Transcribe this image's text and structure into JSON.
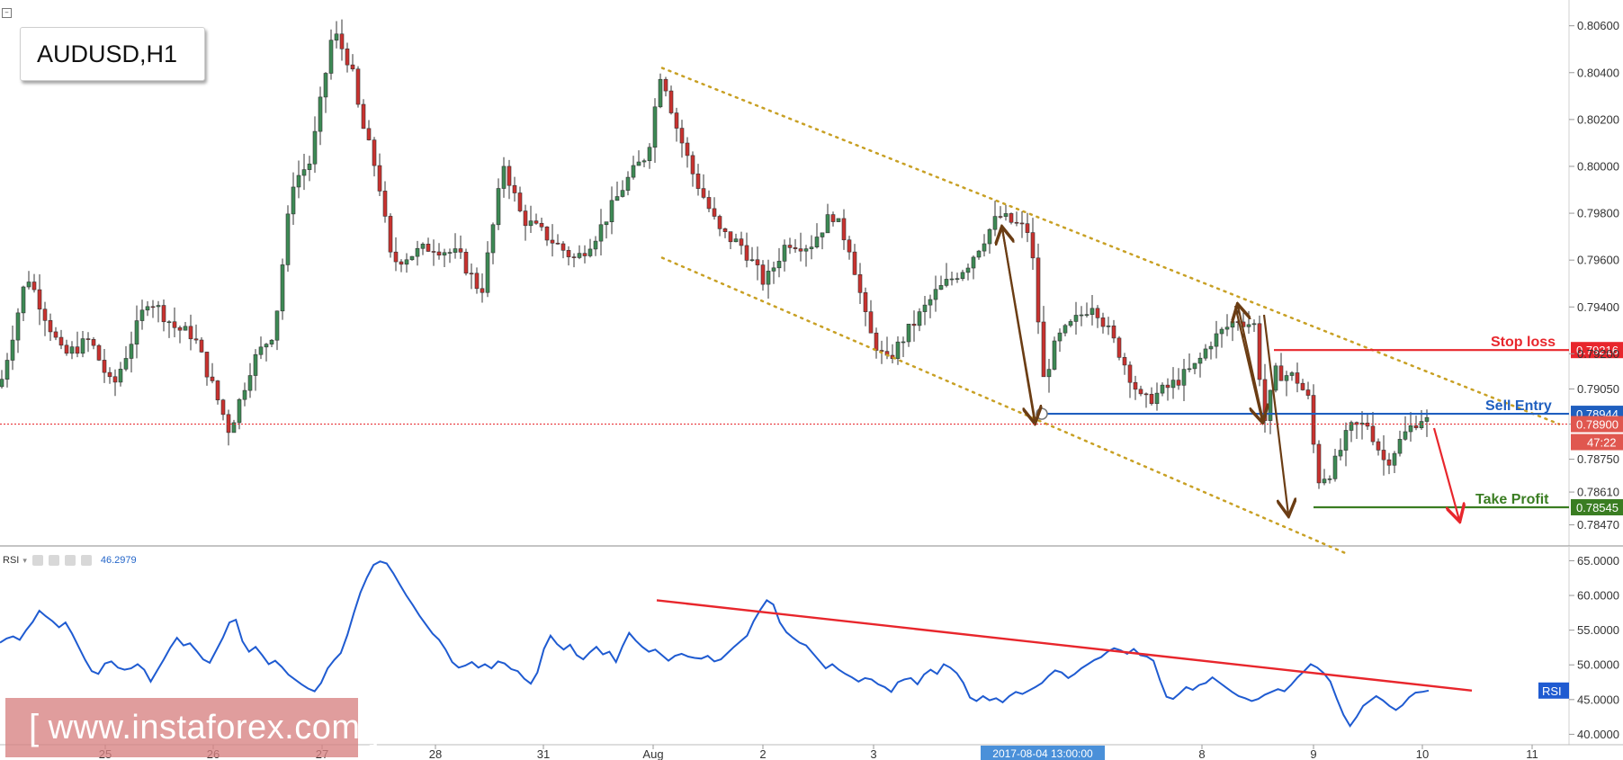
{
  "symbol_label": "AUDUSD,H1",
  "chart_data": [
    {
      "type": "candlestick",
      "title": "AUDUSD,H1",
      "ylim": [
        0.7838,
        0.8071
      ],
      "y_ticks": [
        "0.80600",
        "0.80400",
        "0.80200",
        "0.80000",
        "0.79800",
        "0.79600",
        "0.79400",
        "0.79200",
        "0.79050",
        "0.78900",
        "0.78750",
        "0.78610",
        "0.78470"
      ],
      "x_tick_labels": [
        "25",
        "26",
        "27",
        "28",
        "31",
        "Aug",
        "2",
        "3",
        "8",
        "9",
        "10",
        "11"
      ],
      "highlighted_time": "2017-08-04 13:00:00",
      "current_price": "0.78900",
      "countdown": "47:22",
      "levels": [
        {
          "name": "Stop loss",
          "value": "0.79216",
          "color": "#e8262c"
        },
        {
          "name": "Sell Entry",
          "value": "0.78944",
          "color": "#1f5fbf"
        },
        {
          "name": "Take Profit",
          "value": "0.78545",
          "color": "#3a7d22"
        }
      ],
      "channel": {
        "upper": [
          [
            0.8042,
            0.789
          ]
        ],
        "lower": [
          [
            0.7961,
            0.7835
          ]
        ],
        "color": "#c8a024",
        "style": "dotted"
      },
      "colors": {
        "up": "#3d8a55",
        "down": "#c9322f"
      }
    },
    {
      "type": "line",
      "title": "RSI",
      "value_label": "46.2979",
      "ylim": [
        38.5,
        67
      ],
      "y_ticks": [
        "65.0000",
        "60.0000",
        "55.0000",
        "50.0000",
        "45.0000",
        "40.0000"
      ],
      "badge": "RSI",
      "trendline": {
        "from": 59.3,
        "to": 46.3,
        "color": "#e8262c"
      },
      "series": [
        {
          "values": [
            53.2,
            53.8,
            54.1,
            53.6,
            55,
            56.2,
            57.8,
            57,
            56.3,
            55.4,
            56.1,
            54.5,
            52.6,
            50.7,
            49.1,
            48.7,
            50.2,
            50.5,
            49.6,
            49.3,
            49.5,
            50.1,
            49.3,
            47.6,
            49.2,
            50.8,
            52.5,
            53.9,
            52.8,
            53.1,
            52,
            50.8,
            50.3,
            52.1,
            53.9,
            56.1,
            56.5,
            53.4,
            51.9,
            52.6,
            51.4,
            50.1,
            50.6,
            49.7,
            48.6,
            47.9,
            47.2,
            46.6,
            46.2,
            47.4,
            49.5,
            50.7,
            51.7,
            54.3,
            57.5,
            60.4,
            62.6,
            64.4,
            64.9,
            64.6,
            63.2,
            61.6,
            60,
            58.6,
            57.1,
            55.8,
            54.5,
            53.6,
            52.2,
            50.4,
            49.6,
            49.9,
            50.4,
            49.6,
            50.1,
            49.5,
            50.5,
            50.2,
            49.4,
            49.1,
            48,
            47.3,
            48.9,
            52.3,
            54.2,
            53,
            52.2,
            52.9,
            51.4,
            50.8,
            51.8,
            52.6,
            51.5,
            51.9,
            50.4,
            52.7,
            54.6,
            53.5,
            52.6,
            51.9,
            52.2,
            51.4,
            50.6,
            51.3,
            51.6,
            51.2,
            51,
            50.9,
            51.3,
            50.5,
            50.8,
            51.7,
            52.6,
            53.4,
            54.2,
            56.3,
            57.9,
            59.3,
            58.7,
            56.1,
            54.7,
            53.9,
            53.2,
            52.8,
            51.7,
            50.6,
            49.5,
            50.1,
            49.3,
            48.7,
            48.2,
            47.6,
            48.1,
            47.9,
            47.2,
            46.8,
            46.1,
            47.5,
            47.9,
            48.1,
            47.2,
            48.6,
            49.3,
            48.7,
            50.1,
            49.6,
            48.8,
            47.4,
            45.3,
            44.8,
            45.5,
            44.9,
            45.2,
            44.6,
            45.5,
            46.1,
            45.8,
            46.3,
            46.8,
            47.4,
            48.4,
            49.2,
            48.9,
            48.1,
            48.7,
            49.5,
            50.1,
            50.7,
            51.1,
            51.9,
            52.4,
            52.1,
            51.6,
            52.3,
            51.4,
            51.2,
            50.6,
            47.8,
            45.4,
            45.1,
            45.9,
            46.8,
            46.4,
            47.1,
            47.4,
            48.2,
            47.5,
            46.8,
            46.1,
            45.5,
            45.2,
            44.8,
            45.1,
            45.7,
            46.1,
            46.5,
            46.2,
            47.1,
            48.2,
            49.1,
            50.1,
            49.6,
            48.8,
            47.6,
            45.1,
            42.8,
            41.2,
            42.5,
            44.1,
            44.8,
            45.5,
            44.9,
            44.1,
            43.5,
            44.2,
            45.3,
            46,
            46.1,
            46.3
          ]
        }
      ]
    }
  ],
  "watermark": {
    "open": "[",
    "text": "www.instaforex.com",
    "close": "]"
  }
}
